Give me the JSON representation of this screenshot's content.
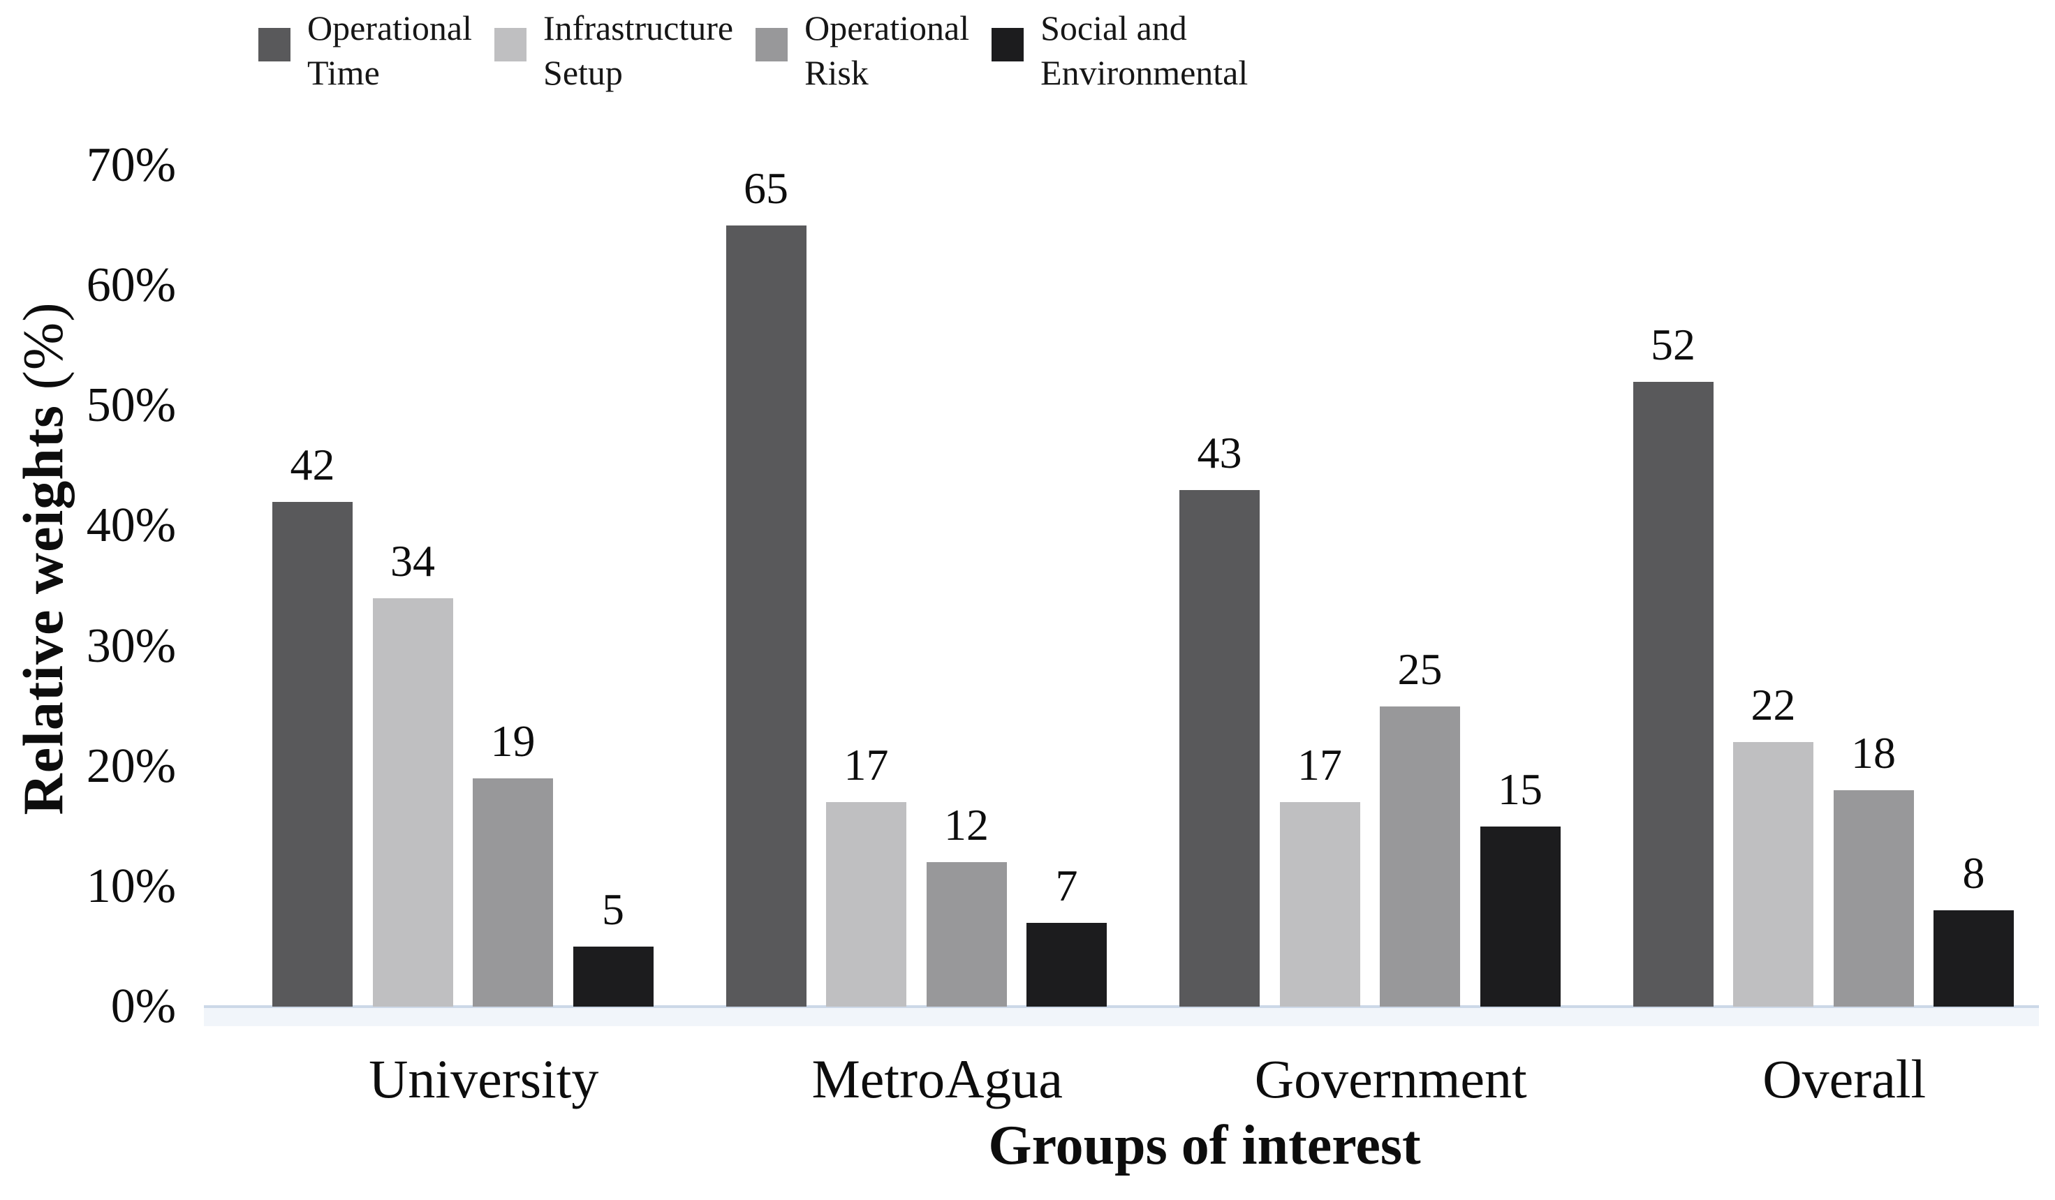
{
  "chart_data": {
    "type": "bar",
    "title": "",
    "categories": [
      "University",
      "MetroAgua",
      "Government",
      "Overall"
    ],
    "series": [
      {
        "name": "Operational Time",
        "legend_label": "Operational\nTime",
        "color": "#59595b",
        "values": [
          42,
          65,
          43,
          52
        ]
      },
      {
        "name": "Infrastructure Setup",
        "legend_label": "Infrastructure\nSetup",
        "color": "#bfbfc1",
        "values": [
          34,
          17,
          17,
          22
        ]
      },
      {
        "name": "Operational Risk",
        "legend_label": "Operational\nRisk",
        "color": "#98989a",
        "values": [
          19,
          12,
          25,
          18
        ]
      },
      {
        "name": "Social and Environmental",
        "legend_label": "Social and\nEnvironmental",
        "color": "#1c1c1e",
        "values": [
          5,
          7,
          15,
          8
        ]
      }
    ],
    "xlabel": "Groups of interest",
    "ylabel": "Relative weights (%)",
    "ylabel_bold_part": "Relative weights",
    "ylabel_normal_part": " (%)",
    "y_ticks": [
      {
        "label": "0%",
        "value": 0
      },
      {
        "label": "10%",
        "value": 10
      },
      {
        "label": "20%",
        "value": 20
      },
      {
        "label": "30%",
        "value": 30
      },
      {
        "label": "40%",
        "value": 40
      },
      {
        "label": "50%",
        "value": 50
      },
      {
        "label": "60%",
        "value": 60
      },
      {
        "label": "70%",
        "value": 70
      }
    ],
    "ylim": [
      0,
      70
    ],
    "grid": false,
    "legend_position": "top",
    "show_data_labels": true,
    "axis_line_color": "#ccd8e8",
    "axis_shadow_color": "#f1f5fa",
    "text_color": "#0d0d0d"
  }
}
